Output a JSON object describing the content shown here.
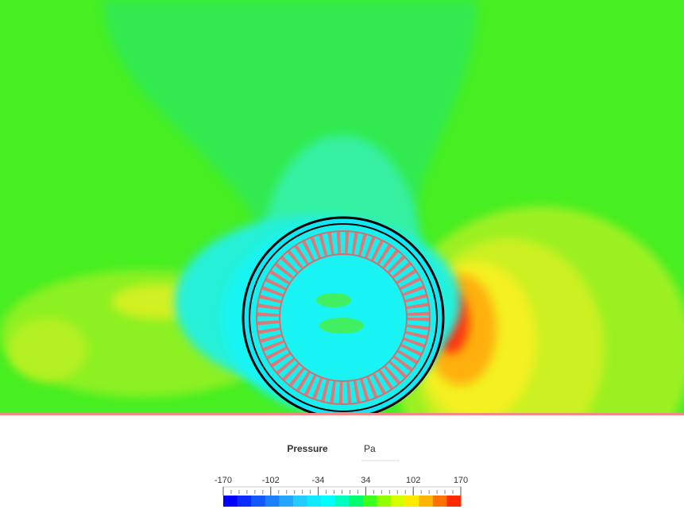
{
  "legend": {
    "title": "Pressure",
    "unit": "Pa",
    "range": [
      -170,
      170
    ],
    "ticks": [
      -170,
      -102,
      -34,
      34,
      102,
      170
    ],
    "colors": [
      "#0000ff",
      "#0a2cff",
      "#1258ff",
      "#1a80ff",
      "#22a6ff",
      "#22ccff",
      "#10eaff",
      "#00ffff",
      "#00ffbe",
      "#00ff6a",
      "#3cff1e",
      "#90ff00",
      "#d8ff00",
      "#ffea00",
      "#ffb400",
      "#ff7200",
      "#ff2a00"
    ]
  }
}
